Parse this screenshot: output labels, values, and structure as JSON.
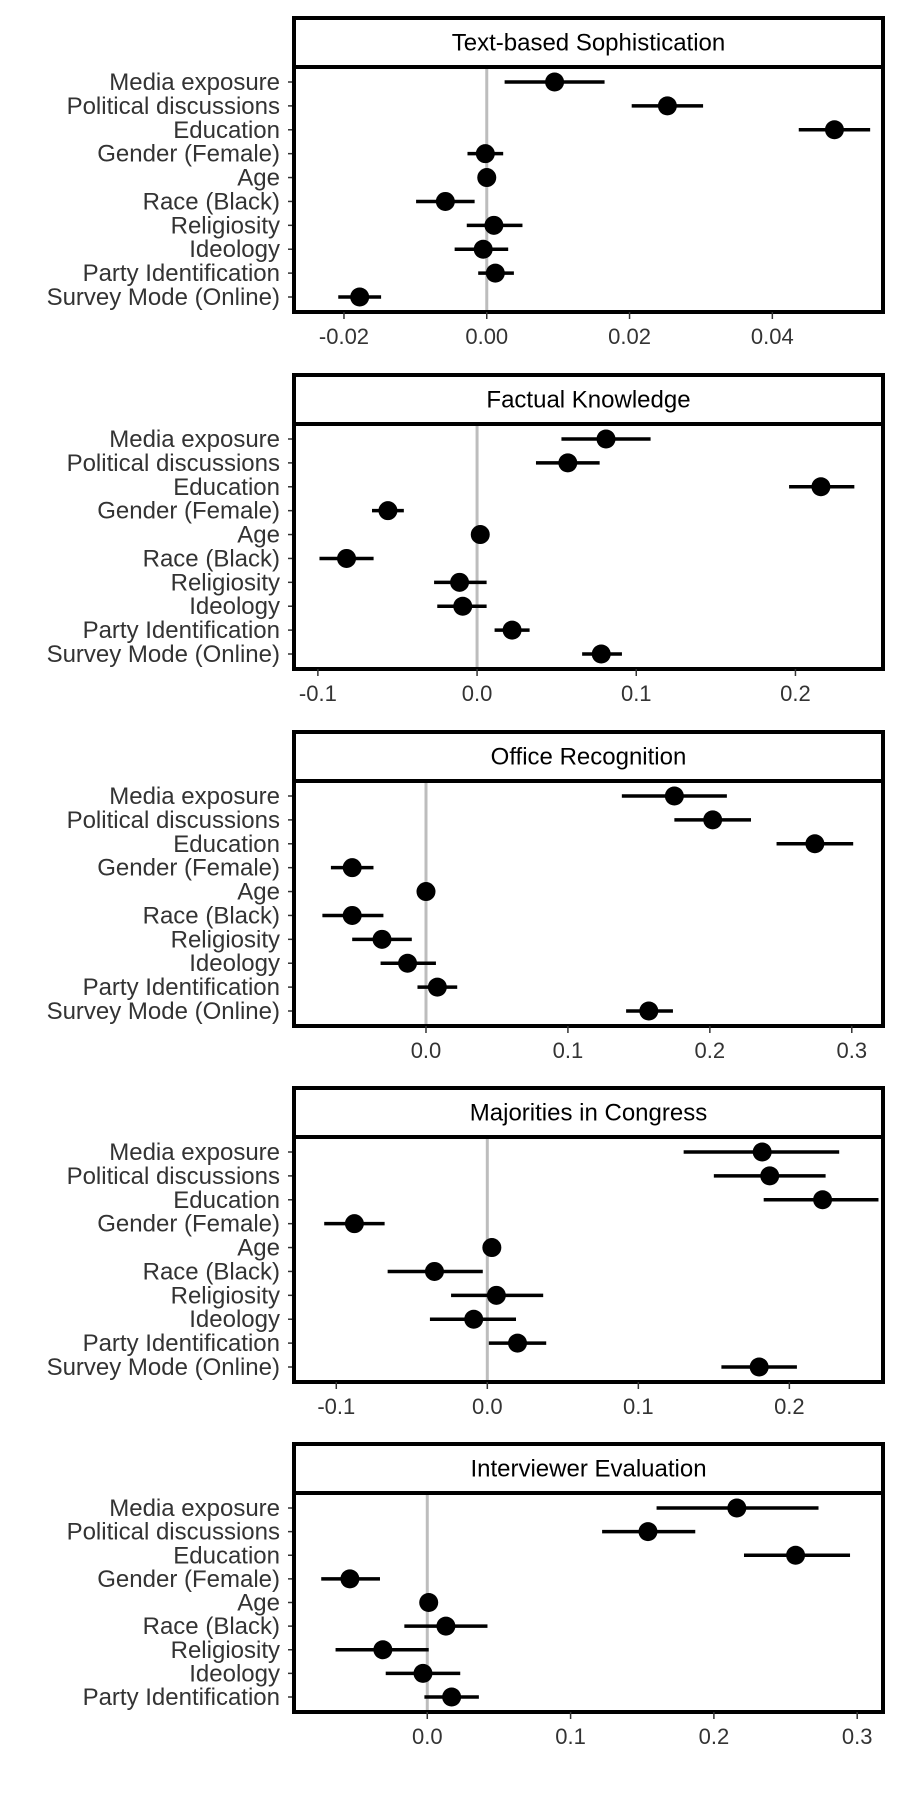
{
  "variables": [
    "Media exposure",
    "Political discussions",
    "Education",
    "Gender (Female)",
    "Age",
    "Race (Black)",
    "Religiosity",
    "Ideology",
    "Party Identification",
    "Survey Mode (Online)"
  ],
  "chart_data": [
    {
      "type": "scatter",
      "title": "Text-based Sophistication",
      "xlim": [
        -0.027,
        0.0555
      ],
      "xticks": [
        -0.02,
        0.0,
        0.02,
        0.04
      ],
      "tick_labels": [
        "-0.02",
        "0.00",
        "0.02",
        "0.04"
      ],
      "reference_line": 0,
      "grid": false,
      "points": [
        {
          "label": "Media exposure",
          "estimate": 0.0095,
          "lower": 0.0025,
          "upper": 0.0165
        },
        {
          "label": "Political discussions",
          "estimate": 0.0253,
          "lower": 0.0203,
          "upper": 0.0303
        },
        {
          "label": "Education",
          "estimate": 0.0487,
          "lower": 0.0437,
          "upper": 0.0537
        },
        {
          "label": "Gender (Female)",
          "estimate": -0.0002,
          "lower": -0.0027,
          "upper": 0.0023
        },
        {
          "label": "Age",
          "estimate": 0.0,
          "lower": -0.0008,
          "upper": 0.0008
        },
        {
          "label": "Race (Black)",
          "estimate": -0.0058,
          "lower": -0.0099,
          "upper": -0.0017
        },
        {
          "label": "Religiosity",
          "estimate": 0.001,
          "lower": -0.0028,
          "upper": 0.005
        },
        {
          "label": "Ideology",
          "estimate": -0.0005,
          "lower": -0.0045,
          "upper": 0.003
        },
        {
          "label": "Party Identification",
          "estimate": 0.0012,
          "lower": -0.0012,
          "upper": 0.0038
        },
        {
          "label": "Survey Mode (Online)",
          "estimate": -0.0178,
          "lower": -0.0208,
          "upper": -0.0148
        }
      ]
    },
    {
      "type": "scatter",
      "title": "Factual Knowledge",
      "xlim": [
        -0.115,
        0.255
      ],
      "xticks": [
        -0.1,
        0.0,
        0.1,
        0.2
      ],
      "tick_labels": [
        "-0.1",
        "0.0",
        "0.1",
        "0.2"
      ],
      "reference_line": 0,
      "grid": false,
      "points": [
        {
          "label": "Media exposure",
          "estimate": 0.081,
          "lower": 0.053,
          "upper": 0.109
        },
        {
          "label": "Political discussions",
          "estimate": 0.057,
          "lower": 0.037,
          "upper": 0.077
        },
        {
          "label": "Education",
          "estimate": 0.216,
          "lower": 0.196,
          "upper": 0.237
        },
        {
          "label": "Gender (Female)",
          "estimate": -0.056,
          "lower": -0.066,
          "upper": -0.046
        },
        {
          "label": "Age",
          "estimate": 0.002,
          "lower": 0.0,
          "upper": 0.004
        },
        {
          "label": "Race (Black)",
          "estimate": -0.082,
          "lower": -0.099,
          "upper": -0.065
        },
        {
          "label": "Religiosity",
          "estimate": -0.011,
          "lower": -0.027,
          "upper": 0.006
        },
        {
          "label": "Ideology",
          "estimate": -0.009,
          "lower": -0.025,
          "upper": 0.006
        },
        {
          "label": "Party Identification",
          "estimate": 0.022,
          "lower": 0.011,
          "upper": 0.033
        },
        {
          "label": "Survey Mode (Online)",
          "estimate": 0.078,
          "lower": 0.066,
          "upper": 0.091
        }
      ]
    },
    {
      "type": "scatter",
      "title": "Office Recognition",
      "xlim": [
        -0.093,
        0.322
      ],
      "xticks": [
        0.0,
        0.1,
        0.2,
        0.3
      ],
      "tick_labels": [
        "0.0",
        "0.1",
        "0.2",
        "0.3"
      ],
      "reference_line": 0,
      "grid": false,
      "points": [
        {
          "label": "Media exposure",
          "estimate": 0.175,
          "lower": 0.138,
          "upper": 0.212
        },
        {
          "label": "Political discussions",
          "estimate": 0.202,
          "lower": 0.175,
          "upper": 0.229
        },
        {
          "label": "Education",
          "estimate": 0.274,
          "lower": 0.247,
          "upper": 0.301
        },
        {
          "label": "Gender (Female)",
          "estimate": -0.052,
          "lower": -0.067,
          "upper": -0.037
        },
        {
          "label": "Age",
          "estimate": 0.0,
          "lower": -0.002,
          "upper": 0.002
        },
        {
          "label": "Race (Black)",
          "estimate": -0.052,
          "lower": -0.073,
          "upper": -0.03
        },
        {
          "label": "Religiosity",
          "estimate": -0.031,
          "lower": -0.052,
          "upper": -0.01
        },
        {
          "label": "Ideology",
          "estimate": -0.013,
          "lower": -0.032,
          "upper": 0.007
        },
        {
          "label": "Party Identification",
          "estimate": 0.008,
          "lower": -0.006,
          "upper": 0.022
        },
        {
          "label": "Survey Mode (Online)",
          "estimate": 0.157,
          "lower": 0.141,
          "upper": 0.174
        }
      ]
    },
    {
      "type": "scatter",
      "title": "Majorities in Congress",
      "xlim": [
        -0.128,
        0.262
      ],
      "xticks": [
        -0.1,
        0.0,
        0.1,
        0.2
      ],
      "tick_labels": [
        "-0.1",
        "0.0",
        "0.1",
        "0.2"
      ],
      "reference_line": 0,
      "grid": false,
      "points": [
        {
          "label": "Media exposure",
          "estimate": 0.182,
          "lower": 0.13,
          "upper": 0.233
        },
        {
          "label": "Political discussions",
          "estimate": 0.187,
          "lower": 0.15,
          "upper": 0.224
        },
        {
          "label": "Education",
          "estimate": 0.222,
          "lower": 0.183,
          "upper": 0.259
        },
        {
          "label": "Gender (Female)",
          "estimate": -0.088,
          "lower": -0.108,
          "upper": -0.068
        },
        {
          "label": "Age",
          "estimate": 0.003,
          "lower": 0.0,
          "upper": 0.006
        },
        {
          "label": "Race (Black)",
          "estimate": -0.035,
          "lower": -0.066,
          "upper": -0.003
        },
        {
          "label": "Religiosity",
          "estimate": 0.006,
          "lower": -0.024,
          "upper": 0.037
        },
        {
          "label": "Ideology",
          "estimate": -0.009,
          "lower": -0.038,
          "upper": 0.019
        },
        {
          "label": "Party Identification",
          "estimate": 0.02,
          "lower": 0.001,
          "upper": 0.039
        },
        {
          "label": "Survey Mode (Online)",
          "estimate": 0.18,
          "lower": 0.155,
          "upper": 0.205
        }
      ]
    },
    {
      "type": "scatter",
      "title": "Interviewer Evaluation",
      "xlim": [
        -0.093,
        0.318
      ],
      "xticks": [
        0.0,
        0.1,
        0.2,
        0.3
      ],
      "tick_labels": [
        "0.0",
        "0.1",
        "0.2",
        "0.3"
      ],
      "reference_line": 0,
      "grid": false,
      "points": [
        {
          "label": "Media exposure",
          "estimate": 0.216,
          "lower": 0.16,
          "upper": 0.273
        },
        {
          "label": "Political discussions",
          "estimate": 0.154,
          "lower": 0.122,
          "upper": 0.187
        },
        {
          "label": "Education",
          "estimate": 0.257,
          "lower": 0.221,
          "upper": 0.295
        },
        {
          "label": "Gender (Female)",
          "estimate": -0.054,
          "lower": -0.074,
          "upper": -0.033
        },
        {
          "label": "Age",
          "estimate": 0.001,
          "lower": -0.001,
          "upper": 0.003
        },
        {
          "label": "Race (Black)",
          "estimate": 0.013,
          "lower": -0.016,
          "upper": 0.042
        },
        {
          "label": "Religiosity",
          "estimate": -0.031,
          "lower": -0.064,
          "upper": 0.001
        },
        {
          "label": "Ideology",
          "estimate": -0.003,
          "lower": -0.029,
          "upper": 0.023
        },
        {
          "label": "Party Identification",
          "estimate": 0.017,
          "lower": -0.002,
          "upper": 0.036
        }
      ]
    }
  ]
}
